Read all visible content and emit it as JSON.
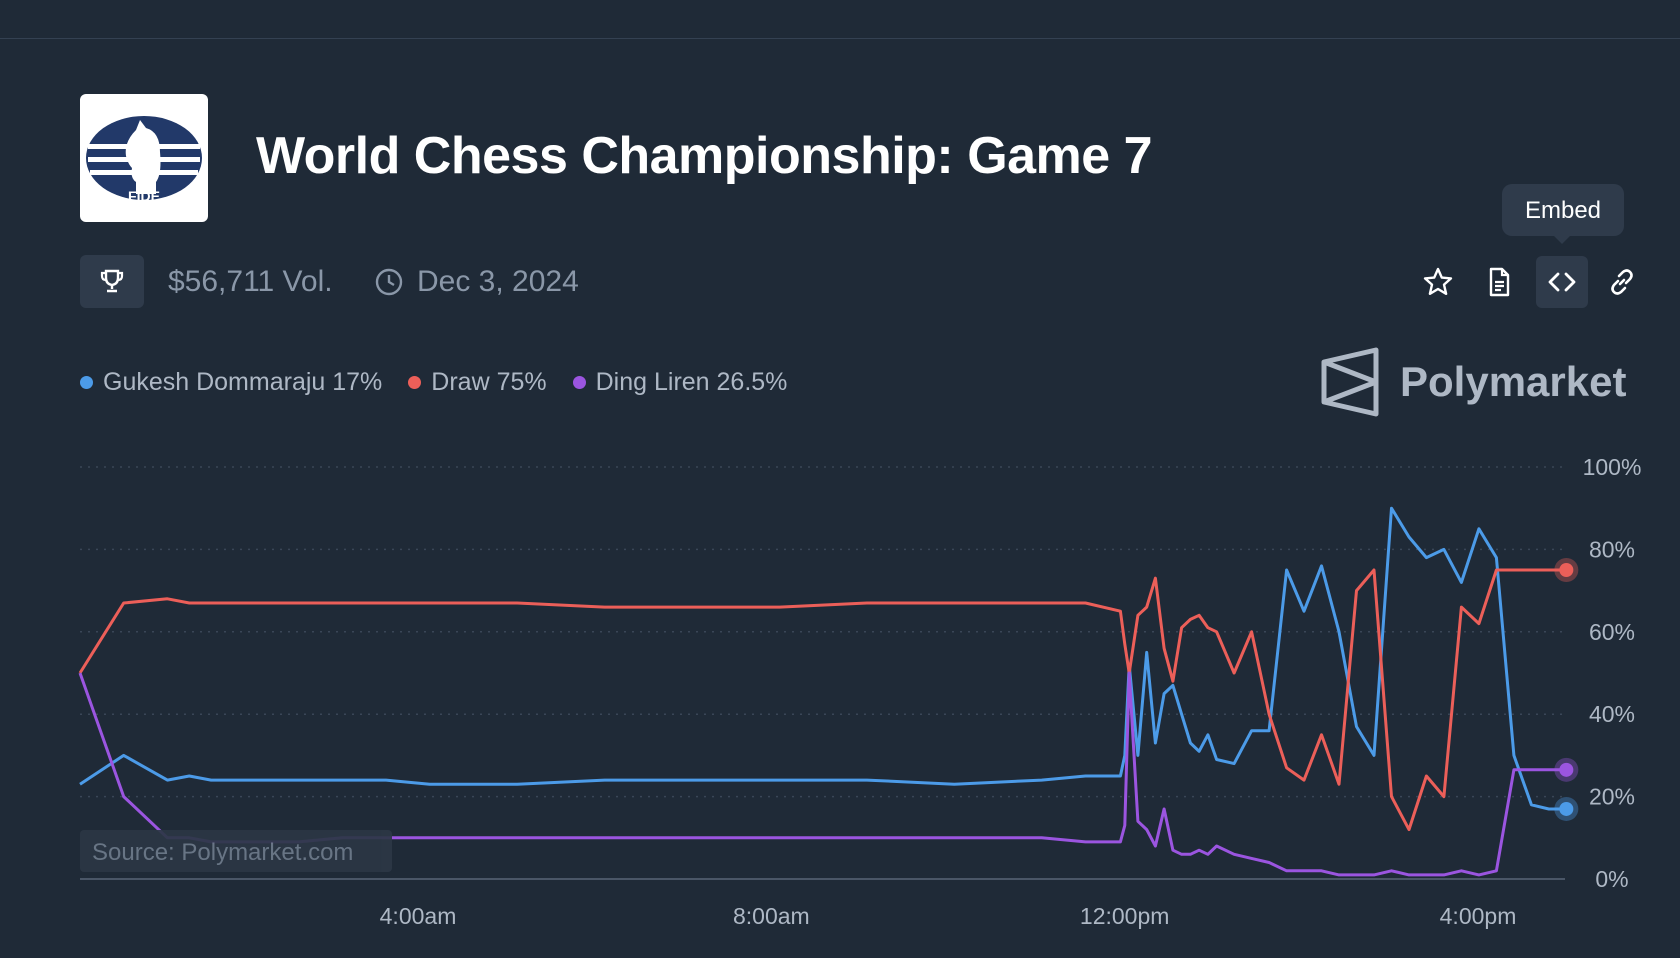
{
  "header": {
    "title": "World Chess Championship: Game 7",
    "logo_text": "FIDE",
    "volume": "$56,711 Vol.",
    "date": "Dec 3, 2024"
  },
  "actions": {
    "embed_tooltip": "Embed",
    "icons": [
      "star-icon",
      "document-icon",
      "code-icon",
      "link-icon"
    ]
  },
  "legend": [
    {
      "label": "Gukesh Dommaraju 17%",
      "color": "#4c9be8"
    },
    {
      "label": "Draw 75%",
      "color": "#ec5f59"
    },
    {
      "label": "Ding Liren 26.5%",
      "color": "#9b55e0"
    }
  ],
  "brand": {
    "name": "Polymarket"
  },
  "source": "Source: Polymarket.com",
  "chart_data": {
    "type": "line",
    "x": [
      0,
      0.5,
      1,
      1.25,
      1.5,
      2,
      2.5,
      3,
      3.5,
      4,
      5,
      6,
      7,
      8,
      9,
      10,
      11,
      11.5,
      11.9,
      11.95,
      12,
      12.1,
      12.2,
      12.3,
      12.4,
      12.5,
      12.6,
      12.7,
      12.8,
      12.9,
      13,
      13.2,
      13.4,
      13.6,
      13.8,
      14,
      14.2,
      14.4,
      14.6,
      14.8,
      15,
      15.2,
      15.4,
      15.6,
      15.8,
      16,
      16.2,
      16.4,
      16.6,
      16.8,
      16.9,
      17
    ],
    "x_ticks": [
      {
        "value": 4,
        "label": "4:00am"
      },
      {
        "value": 8,
        "label": "8:00am"
      },
      {
        "value": 12,
        "label": "12:00pm"
      },
      {
        "value": 16,
        "label": "4:00pm"
      }
    ],
    "ylim": [
      0,
      100
    ],
    "y_ticks": [
      "0%",
      "20%",
      "40%",
      "60%",
      "80%",
      "100%"
    ],
    "grid": true,
    "series": [
      {
        "name": "Gukesh Dommaraju",
        "color": "#4c9be8",
        "values": [
          23,
          30,
          24,
          25,
          24,
          24,
          24,
          24,
          24,
          23,
          23,
          24,
          24,
          24,
          24,
          23,
          24,
          25,
          25,
          30,
          52,
          30,
          55,
          33,
          45,
          47,
          40,
          33,
          31,
          35,
          29,
          28,
          36,
          36,
          75,
          65,
          76,
          60,
          37,
          30,
          90,
          83,
          78,
          80,
          72,
          85,
          78,
          30,
          18,
          17,
          17,
          17
        ]
      },
      {
        "name": "Draw",
        "color": "#ec5f59",
        "values": [
          50,
          67,
          68,
          67,
          67,
          67,
          67,
          67,
          67,
          67,
          67,
          66,
          66,
          66,
          67,
          67,
          67,
          67,
          65,
          57,
          50,
          64,
          66,
          73,
          56,
          48,
          61,
          63,
          64,
          61,
          60,
          50,
          60,
          40,
          27,
          24,
          35,
          23,
          70,
          75,
          20,
          12,
          25,
          20,
          66,
          62,
          75,
          75,
          75,
          75,
          75,
          75
        ]
      },
      {
        "name": "Ding Liren",
        "color": "#9b55e0",
        "values": [
          50,
          20,
          10,
          10,
          9,
          9,
          9,
          10,
          10,
          10,
          10,
          10,
          10,
          10,
          10,
          10,
          10,
          9,
          9,
          13,
          50,
          14,
          12,
          8,
          17,
          7,
          6,
          6,
          7,
          6,
          8,
          6,
          5,
          4,
          2,
          2,
          2,
          1,
          1,
          1,
          2,
          1,
          1,
          1,
          2,
          1,
          2,
          26.5,
          26.5,
          26.5,
          26.5,
          26.5
        ]
      }
    ]
  }
}
